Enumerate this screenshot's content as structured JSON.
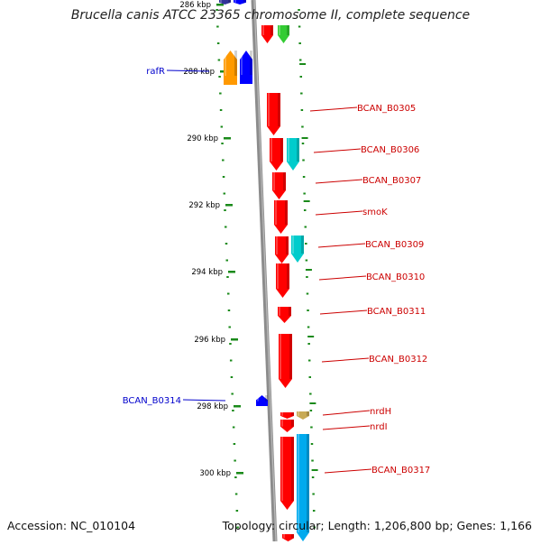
{
  "title": "Brucella canis ATCC 23365 chromosome II, complete sequence",
  "footer": {
    "accession": "Accession: NC_010104",
    "topology": "Topology: circular; Length: 1,206,800 bp; Genes: 1,166"
  },
  "colors": {
    "backbone": "#8c8c8c",
    "tick": "#1a8a1a",
    "label_right": "#cc0000",
    "label_left": "#0000cc",
    "gene_red": "#ff0000",
    "gene_blue": "#0000ff",
    "gene_orange": "#ff9900",
    "gene_green": "#33cc33",
    "gene_cyan": "#00cccc",
    "gene_skyblue": "#00aaee",
    "gene_tan": "#c8aa55",
    "gene_navy": "#333399"
  },
  "scale_labels": [
    "286 kbp",
    "288 kbp",
    "290 kbp",
    "292 kbp",
    "294 kbp",
    "296 kbp",
    "298 kbp",
    "300 kbp"
  ],
  "gene_labels_right": [
    "BCAN_B0305",
    "BCAN_B0306",
    "BCAN_B0307",
    "smoK",
    "BCAN_B0309",
    "BCAN_B0310",
    "BCAN_B0311",
    "BCAN_B0312",
    "nrdH",
    "nrdI",
    "BCAN_B0317"
  ],
  "gene_labels_left": [
    "rafR",
    "BCAN_B0314"
  ]
}
